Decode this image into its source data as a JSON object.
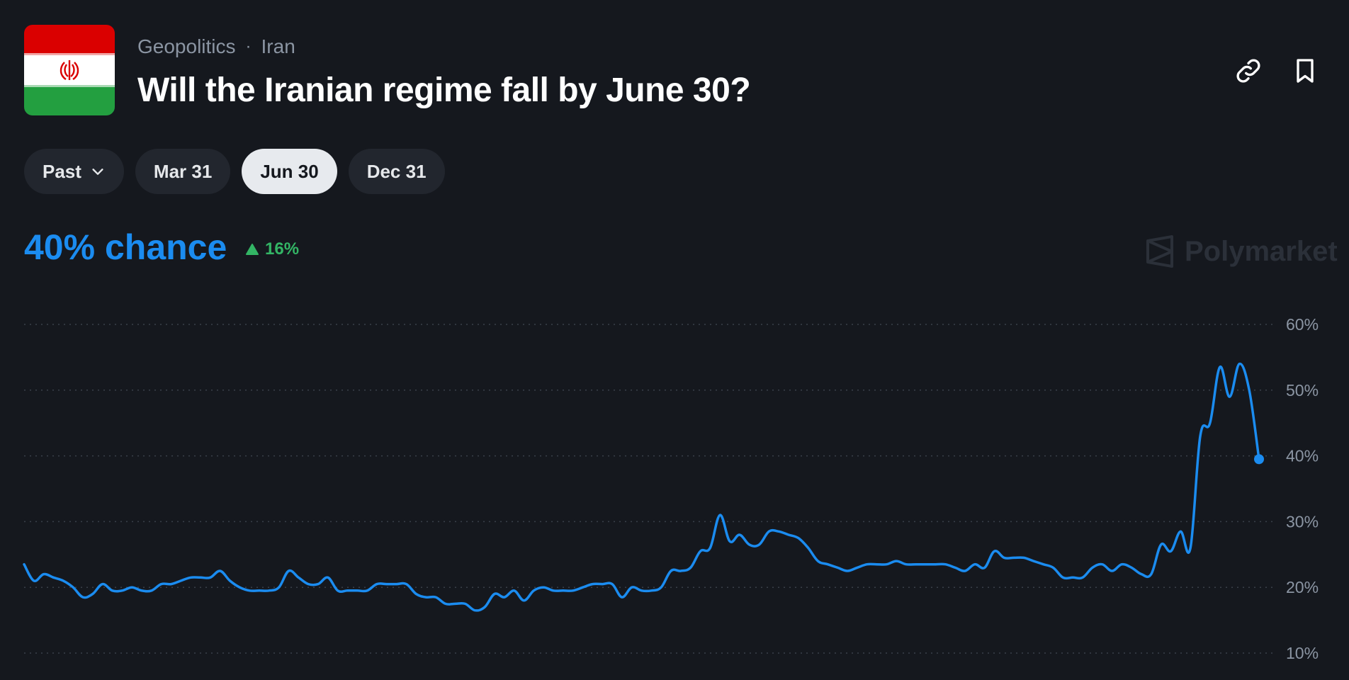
{
  "header": {
    "category": "Geopolitics",
    "separator": "·",
    "subcategory": "Iran",
    "title": "Will the Iranian regime fall by June 30?",
    "flag_colors": {
      "green": "#239f40",
      "white": "#ffffff",
      "red": "#da0000"
    },
    "actions": [
      {
        "name": "link-icon"
      },
      {
        "name": "bookmark-icon"
      }
    ]
  },
  "tabs": [
    {
      "label": "Past",
      "dropdown": true,
      "active": false
    },
    {
      "label": "Mar 31",
      "active": false
    },
    {
      "label": "Jun 30",
      "active": true
    },
    {
      "label": "Dec 31",
      "active": false
    }
  ],
  "summary": {
    "chance_text": "40% chance",
    "delta_text": "16%",
    "delta_direction": "up",
    "accent_color": "#1b8cf0",
    "delta_color": "#33b565"
  },
  "watermark": {
    "text": "Polymarket"
  },
  "chart_data": {
    "type": "line",
    "ylim": [
      10,
      60
    ],
    "ticks": [
      {
        "value": 60,
        "label": "60%"
      },
      {
        "value": 50,
        "label": "50%"
      },
      {
        "value": 40,
        "label": "40%"
      },
      {
        "value": 30,
        "label": "30%"
      },
      {
        "value": 20,
        "label": "20%"
      },
      {
        "value": 10,
        "label": "10%"
      }
    ],
    "grid": true,
    "line_color": "#1b8cf0",
    "series": [
      {
        "values": [
          23.5,
          21.0,
          22.0,
          21.5,
          21.0,
          20.0,
          18.5,
          19.0,
          20.5,
          19.5,
          19.5,
          20.0,
          19.5,
          19.5,
          20.5,
          20.5,
          21.0,
          21.5,
          21.5,
          21.5,
          22.5,
          21.0,
          20.0,
          19.5,
          19.5,
          19.5,
          20.0,
          22.5,
          21.5,
          20.5,
          20.5,
          21.5,
          19.5,
          19.5,
          19.5,
          19.5,
          20.5,
          20.5,
          20.5,
          20.5,
          19.0,
          18.5,
          18.5,
          17.5,
          17.5,
          17.5,
          16.5,
          17.0,
          19.0,
          18.5,
          19.5,
          18.0,
          19.5,
          20.0,
          19.5,
          19.5,
          19.5,
          20.0,
          20.5,
          20.5,
          20.5,
          18.5,
          20.0,
          19.5,
          19.5,
          20.0,
          22.5,
          22.5,
          23.0,
          25.5,
          26.0,
          31.0,
          27.0,
          28.0,
          26.5,
          26.5,
          28.5,
          28.5,
          28.0,
          27.5,
          26.0,
          24.0,
          23.5,
          23.0,
          22.5,
          23.0,
          23.5,
          23.5,
          23.5,
          24.0,
          23.5,
          23.5,
          23.5,
          23.5,
          23.5,
          23.0,
          22.5,
          23.5,
          23.0,
          25.5,
          24.5,
          24.5,
          24.5,
          24.0,
          23.5,
          23.0,
          21.5,
          21.5,
          21.5,
          23.0,
          23.5,
          22.5,
          23.5,
          23.0,
          22.0,
          22.0,
          26.5,
          25.5,
          28.5,
          26.0,
          43.0,
          45.0,
          53.5,
          49.0,
          54.0,
          50.0,
          39.5
        ]
      }
    ]
  }
}
